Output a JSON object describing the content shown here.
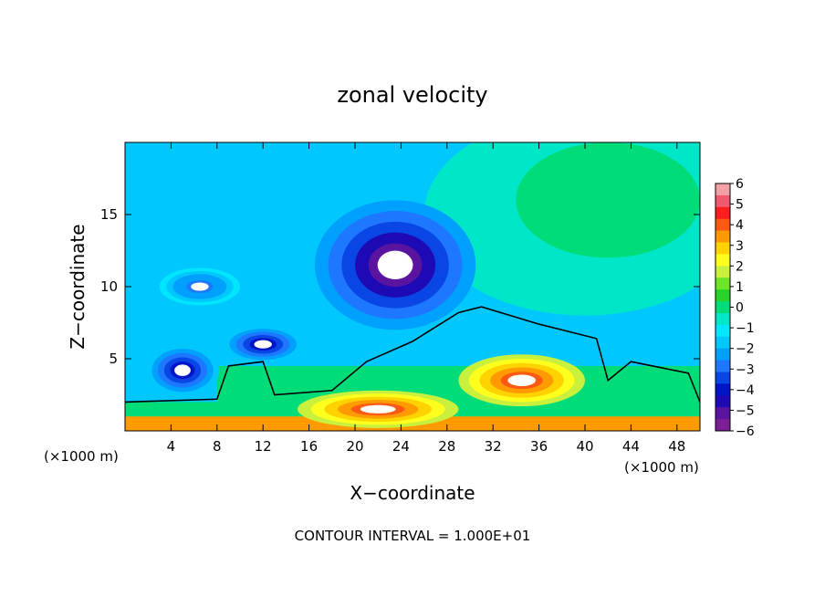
{
  "chart_data": {
    "type": "heatmap",
    "title": "zonal velocity",
    "xlabel": "X−coordinate",
    "ylabel": "Z−coordinate",
    "x_unit_left": "(×1000 m)",
    "x_unit_right": "(×1000 m)",
    "footnote": "CONTOUR INTERVAL = 1.000E+01",
    "xlim": [
      0,
      50
    ],
    "ylim": [
      0,
      20
    ],
    "x_ticks": [
      4,
      8,
      12,
      16,
      20,
      24,
      28,
      32,
      36,
      40,
      44,
      48
    ],
    "x_tick_labels": [
      "4",
      "8",
      "12",
      "16",
      "20",
      "24",
      "28",
      "32",
      "36",
      "40",
      "44",
      "48"
    ],
    "y_ticks": [
      5,
      10,
      15
    ],
    "y_tick_labels": [
      "5",
      "10",
      "15"
    ],
    "colorbar": {
      "min": -6,
      "max": 6,
      "tick_labels": [
        "6",
        "5",
        "4",
        "3",
        "2",
        "1",
        "0",
        "−1",
        "−2",
        "−3",
        "−4",
        "−5",
        "−6"
      ],
      "colors": [
        "#f4a0a8",
        "#f05a6e",
        "#ff1e1e",
        "#ff5a14",
        "#ff9a00",
        "#ffd200",
        "#ffff1e",
        "#c8f03c",
        "#6ee628",
        "#28d228",
        "#00dc78",
        "#00e6c8",
        "#00e6ff",
        "#00c8ff",
        "#00a0ff",
        "#1e78ff",
        "#0a46e6",
        "#0014c8",
        "#1e0ab4",
        "#5a14a0",
        "#7e1e96"
      ]
    },
    "features": [
      {
        "type": "min",
        "x": 23.5,
        "z": 11.5,
        "value": -6,
        "rx": 7,
        "rz": 4.5
      },
      {
        "type": "min",
        "x": 5,
        "z": 4.2,
        "value": -5,
        "rx": 3.2,
        "rz": 1.8
      },
      {
        "type": "min",
        "x": 12,
        "z": 6.0,
        "value": -4.5,
        "rx": 3.5,
        "rz": 1.3
      },
      {
        "type": "min",
        "x": 6.5,
        "z": 10.0,
        "value": -3.5,
        "rx": 3.5,
        "rz": 1.3
      },
      {
        "type": "max",
        "x": 34.5,
        "z": 3.5,
        "value": 5,
        "rx": 5.5,
        "rz": 1.8
      },
      {
        "type": "max",
        "x": 22,
        "z": 1.5,
        "value": 5,
        "rx": 7,
        "rz": 1.3
      }
    ]
  }
}
